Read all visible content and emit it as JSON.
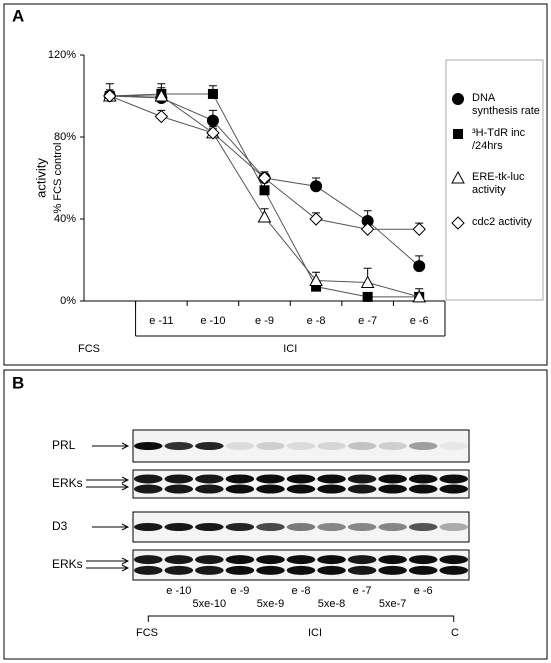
{
  "panel_a": "A",
  "chart_data": {
    "type": "line",
    "ylabel": "activity",
    "ylabel_sub": "% FCS control",
    "categories": [
      null,
      "e -11",
      "e -10",
      "e -9",
      "e -8",
      "e -7",
      "e -6"
    ],
    "annotations": {
      "fcs": "FCS",
      "ici": "ICI"
    },
    "ylim": [
      0,
      120
    ],
    "yticks": [
      {
        "value": 0,
        "label": "0%"
      },
      {
        "value": 40,
        "label": "40%"
      },
      {
        "value": 80,
        "label": "80%"
      },
      {
        "value": 120,
        "label": "120%"
      }
    ],
    "grid": false,
    "series": [
      {
        "name": "DNA synthesis rate",
        "color": "#000000",
        "marker": "circle",
        "values": [
          100,
          99,
          88,
          60,
          56,
          39,
          17
        ],
        "errors": [
          6,
          5,
          5,
          3,
          4,
          5,
          5
        ]
      },
      {
        "name": "³H-TdR inc /24hrs",
        "color": "#000000",
        "marker": "square",
        "values": [
          100,
          101,
          101,
          54,
          7,
          2,
          2
        ],
        "errors": [
          3,
          5,
          4,
          4,
          2,
          2,
          2
        ]
      },
      {
        "name": "ERE-tk-luc activity",
        "color": "#000000",
        "marker": "triangle",
        "values": [
          100,
          100,
          82,
          41,
          10,
          9,
          2
        ],
        "errors": [
          2,
          2,
          3,
          4,
          4,
          7,
          4
        ]
      },
      {
        "name": "cdc2 activity",
        "color": "#000000",
        "marker": "diamond",
        "values": [
          100,
          90,
          82,
          60,
          40,
          35,
          35
        ],
        "errors": [
          2,
          3,
          2,
          2,
          3,
          3,
          3
        ]
      }
    ]
  },
  "panel_b": {
    "label": "B",
    "rows": [
      "PRL",
      "ERKs",
      "D3",
      "ERKs"
    ],
    "lanes_top": [
      "e -10",
      "e -9",
      "e -8",
      "e -7",
      "e -6"
    ],
    "lanes_bottom": [
      "5xe-10",
      "5xe-9",
      "5xe-8",
      "5xe-7"
    ],
    "fcs": "FCS",
    "ici": "ICI",
    "c": "C"
  }
}
